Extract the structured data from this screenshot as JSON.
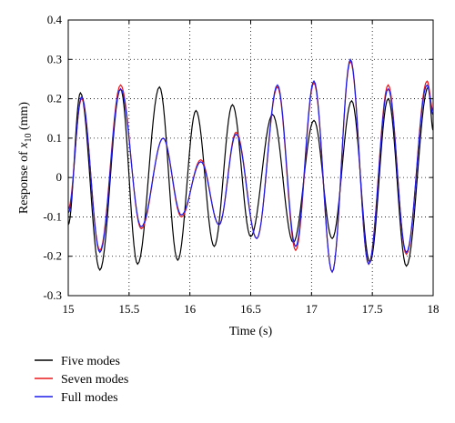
{
  "chart_data": {
    "type": "line",
    "xlabel": "Time (s)",
    "ylabel_prefix": "Response of ",
    "ylabel_var": "x",
    "ylabel_sub": "10",
    "ylabel_suffix": " (mm)",
    "xlim": [
      15,
      18
    ],
    "ylim": [
      -0.3,
      0.4
    ],
    "xticks": [
      15,
      15.5,
      16,
      16.5,
      17,
      17.5,
      18
    ],
    "yticks": [
      -0.3,
      -0.2,
      -0.1,
      0,
      0.1,
      0.2,
      0.3,
      0.4
    ],
    "grid": true,
    "legend_position": "bottom-left, below plot",
    "series": [
      {
        "name": "Five modes",
        "color": "#000000",
        "x": [
          15.0,
          15.1,
          15.26,
          15.43,
          15.57,
          15.75,
          15.9,
          16.05,
          16.2,
          16.35,
          16.5,
          16.68,
          16.85,
          17.02,
          17.17,
          17.33,
          17.48,
          17.63,
          17.78,
          17.96,
          18.0
        ],
        "y": [
          -0.12,
          0.215,
          -0.235,
          0.225,
          -0.22,
          0.23,
          -0.21,
          0.17,
          -0.175,
          0.185,
          -0.15,
          0.16,
          -0.165,
          0.145,
          -0.155,
          0.195,
          -0.215,
          0.2,
          -0.225,
          0.23,
          0.12
        ]
      },
      {
        "name": "Seven modes",
        "color": "#e8181c",
        "x": [
          15.0,
          15.11,
          15.26,
          15.43,
          15.6,
          15.78,
          15.93,
          16.09,
          16.24,
          16.38,
          16.55,
          16.72,
          16.87,
          17.02,
          17.17,
          17.32,
          17.47,
          17.63,
          17.78,
          17.95,
          18.0
        ],
        "y": [
          -0.08,
          0.2,
          -0.185,
          0.235,
          -0.13,
          0.1,
          -0.1,
          0.045,
          -0.12,
          0.115,
          -0.155,
          0.23,
          -0.185,
          0.24,
          -0.24,
          0.295,
          -0.22,
          0.235,
          -0.195,
          0.245,
          0.17
        ]
      },
      {
        "name": "Full modes",
        "color": "#1c1ce8",
        "x": [
          15.0,
          15.11,
          15.26,
          15.43,
          15.6,
          15.78,
          15.93,
          16.09,
          16.24,
          16.38,
          16.55,
          16.72,
          16.87,
          17.02,
          17.17,
          17.32,
          17.47,
          17.63,
          17.78,
          17.95,
          18.0
        ],
        "y": [
          -0.09,
          0.205,
          -0.19,
          0.225,
          -0.125,
          0.1,
          -0.095,
          0.04,
          -0.12,
          0.11,
          -0.155,
          0.235,
          -0.175,
          0.245,
          -0.24,
          0.3,
          -0.22,
          0.225,
          -0.19,
          0.235,
          0.16
        ]
      }
    ]
  }
}
